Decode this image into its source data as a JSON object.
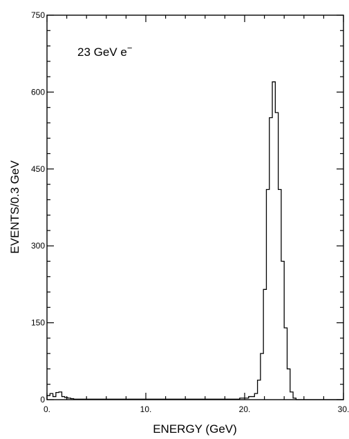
{
  "chart_data": {
    "type": "bar",
    "title": "",
    "xlabel": "ENERGY (GeV)",
    "ylabel": "EVENTS/0.3 GeV",
    "xlim": [
      0,
      30
    ],
    "ylim": [
      0,
      750
    ],
    "xticks": [
      0,
      10,
      20,
      30
    ],
    "xtick_labels": [
      "0.",
      "10.",
      "20.",
      "30."
    ],
    "yticks": [
      0,
      150,
      300,
      450,
      600,
      750
    ],
    "ytick_labels": [
      "0",
      "150",
      "300",
      "450",
      "600",
      "750"
    ],
    "grid": false,
    "legend": "none",
    "annotation": {
      "text": "23 GeV e",
      "superscript": "−"
    },
    "bin_width": 0.3,
    "bins": [
      {
        "x0": 0.0,
        "x1": 0.3,
        "y": 8
      },
      {
        "x0": 0.3,
        "x1": 0.6,
        "y": 12
      },
      {
        "x0": 0.6,
        "x1": 0.9,
        "y": 6
      },
      {
        "x0": 0.9,
        "x1": 1.2,
        "y": 14
      },
      {
        "x0": 1.2,
        "x1": 1.5,
        "y": 15
      },
      {
        "x0": 1.5,
        "x1": 1.8,
        "y": 6
      },
      {
        "x0": 1.8,
        "x1": 2.1,
        "y": 4
      },
      {
        "x0": 2.1,
        "x1": 2.4,
        "y": 3
      },
      {
        "x0": 2.4,
        "x1": 2.7,
        "y": 2
      },
      {
        "x0": 2.7,
        "x1": 3.0,
        "y": 1
      },
      {
        "x0": 3.0,
        "x1": 18.0,
        "y": 1
      },
      {
        "x0": 18.0,
        "x1": 19.5,
        "y": 1
      },
      {
        "x0": 19.5,
        "x1": 20.4,
        "y": 3
      },
      {
        "x0": 20.4,
        "x1": 21.0,
        "y": 6
      },
      {
        "x0": 21.0,
        "x1": 21.3,
        "y": 12
      },
      {
        "x0": 21.3,
        "x1": 21.6,
        "y": 38
      },
      {
        "x0": 21.6,
        "x1": 21.9,
        "y": 90
      },
      {
        "x0": 21.9,
        "x1": 22.2,
        "y": 215
      },
      {
        "x0": 22.2,
        "x1": 22.5,
        "y": 410
      },
      {
        "x0": 22.5,
        "x1": 22.8,
        "y": 550
      },
      {
        "x0": 22.8,
        "x1": 23.1,
        "y": 620
      },
      {
        "x0": 23.1,
        "x1": 23.4,
        "y": 560
      },
      {
        "x0": 23.4,
        "x1": 23.7,
        "y": 410
      },
      {
        "x0": 23.7,
        "x1": 24.0,
        "y": 270
      },
      {
        "x0": 24.0,
        "x1": 24.3,
        "y": 140
      },
      {
        "x0": 24.3,
        "x1": 24.6,
        "y": 60
      },
      {
        "x0": 24.6,
        "x1": 24.9,
        "y": 15
      },
      {
        "x0": 24.9,
        "x1": 25.2,
        "y": 3
      },
      {
        "x0": 25.2,
        "x1": 30.0,
        "y": 0
      }
    ]
  }
}
